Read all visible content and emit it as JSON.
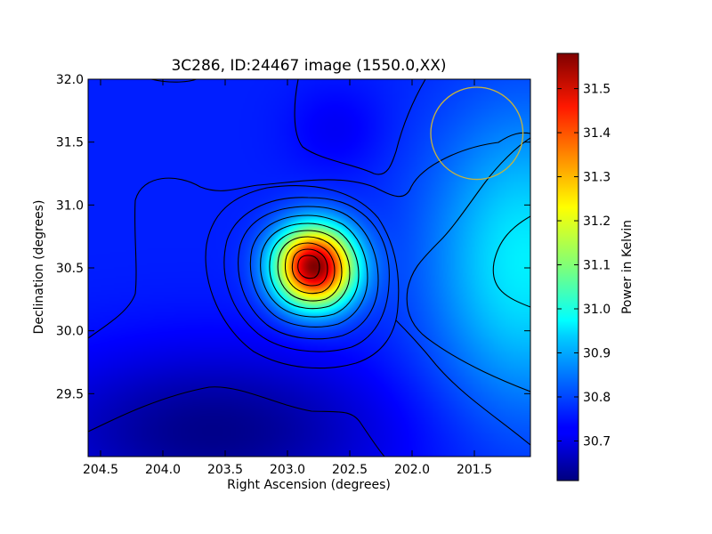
{
  "chart_data": {
    "type": "heatmap",
    "title": "3C286, ID:24467 image (1550.0,XX)",
    "xlabel": "Right Ascension (degrees)",
    "ylabel": "Declination (degrees)",
    "xlim": [
      204.6,
      201.05
    ],
    "ylim": [
      29.0,
      32.0
    ],
    "x_ticks": [
      {
        "value": 204.5,
        "label": "204.5"
      },
      {
        "value": 204.0,
        "label": "204.0"
      },
      {
        "value": 203.5,
        "label": "203.5"
      },
      {
        "value": 203.0,
        "label": "203.0"
      },
      {
        "value": 202.5,
        "label": "202.5"
      },
      {
        "value": 202.0,
        "label": "202.0"
      },
      {
        "value": 201.5,
        "label": "201.5"
      }
    ],
    "y_ticks": [
      {
        "value": 29.5,
        "label": "29.5"
      },
      {
        "value": 30.0,
        "label": "30.0"
      },
      {
        "value": 30.5,
        "label": "30.5"
      },
      {
        "value": 31.0,
        "label": "31.0"
      },
      {
        "value": 31.5,
        "label": "31.5"
      },
      {
        "value": 32.0,
        "label": "32.0"
      }
    ],
    "colorbar": {
      "label": "Power in Kelvin",
      "range": [
        30.61,
        31.58
      ],
      "ticks": [
        {
          "value": 30.7,
          "label": "30.7"
        },
        {
          "value": 30.8,
          "label": "30.8"
        },
        {
          "value": 30.9,
          "label": "30.9"
        },
        {
          "value": 31.0,
          "label": "31.0"
        },
        {
          "value": 31.1,
          "label": "31.1"
        },
        {
          "value": 31.2,
          "label": "31.2"
        },
        {
          "value": 31.3,
          "label": "31.3"
        },
        {
          "value": 31.4,
          "label": "31.4"
        },
        {
          "value": 31.5,
          "label": "31.5"
        }
      ],
      "colormap": "jet"
    },
    "peak": {
      "ra": 202.78,
      "dec": 30.51,
      "value": 31.58
    },
    "field_features": [
      {
        "ra": 201.1,
        "dec": 30.55,
        "value": 30.96
      },
      {
        "ra": 203.6,
        "dec": 29.2,
        "value": 30.62
      }
    ],
    "beam_circle": {
      "ra": 201.48,
      "dec": 31.57,
      "radius_deg": 0.37,
      "color": "#c8b43c"
    },
    "contour_color": "#000000",
    "grid": false,
    "legend": "none"
  }
}
